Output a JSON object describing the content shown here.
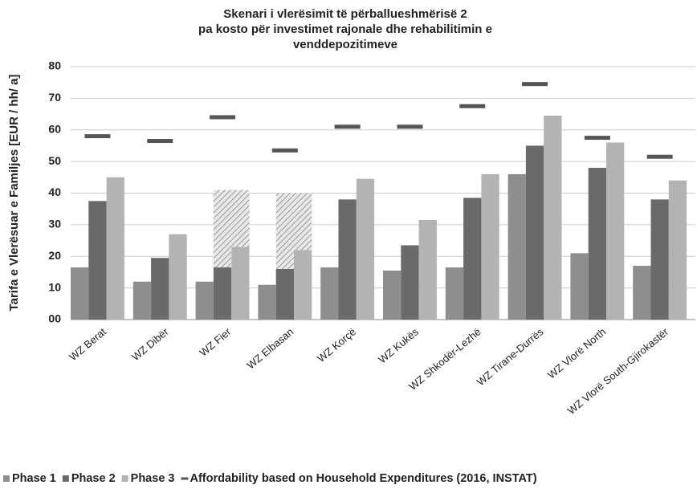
{
  "chart_data": {
    "type": "bar",
    "title": [
      "Skenari i vlerësimit të përballueshmërisë 2",
      "pa kosto për investimet rajonale dhe rehabilitimin e",
      "venddepozitimeve"
    ],
    "y_label": "Tarifa e Vlerësuar e Familjes [EUR / hh/ a]",
    "categories": [
      "WZ Berat",
      "WZ Dibër",
      "WZ Fier",
      "WZ Elbasan",
      "WZ Korçë",
      "WZ Kukës",
      "WZ Shkodër-Lezhë",
      "WZ Tirane-Durrës",
      "WZ Vlorë North",
      "WZ Vlorë South-Gjirokastër"
    ],
    "series": [
      {
        "name": "Phase 1",
        "color": "#8e8e8e",
        "values": [
          16.5,
          12,
          12,
          11,
          16.5,
          15.5,
          16.5,
          46,
          21,
          17
        ]
      },
      {
        "name": "Phase 2",
        "color": "#6a6a6a",
        "values": [
          37.5,
          19.5,
          16.5,
          16,
          38,
          23.5,
          38.5,
          55,
          48,
          38
        ]
      },
      {
        "name": "Phase 3",
        "color": "#b3b3b3",
        "values": [
          45,
          27,
          23,
          22,
          44.5,
          31.5,
          46,
          64.5,
          56,
          44
        ]
      },
      {
        "name": "Affordability based on Household Expenditures (2016, INSTAT)",
        "color": "#555555",
        "marker": "dash",
        "values": [
          58,
          56.5,
          64,
          53.5,
          61,
          61,
          67.5,
          74.5,
          57.5,
          51.5
        ]
      }
    ],
    "hatch_series": [
      {
        "over": 1,
        "values": [
          null,
          null,
          24.5,
          24,
          null,
          null,
          null,
          null,
          null,
          null
        ]
      },
      {
        "over": 2,
        "values": [
          null,
          null,
          18,
          18,
          null,
          null,
          null,
          null,
          null,
          null
        ]
      }
    ],
    "ylim": [
      0,
      80
    ],
    "yticks": [
      {
        "value": 0,
        "label": "00"
      },
      10,
      20,
      30,
      40,
      50,
      60,
      70,
      80
    ],
    "grid": true,
    "legend": "bottom"
  }
}
